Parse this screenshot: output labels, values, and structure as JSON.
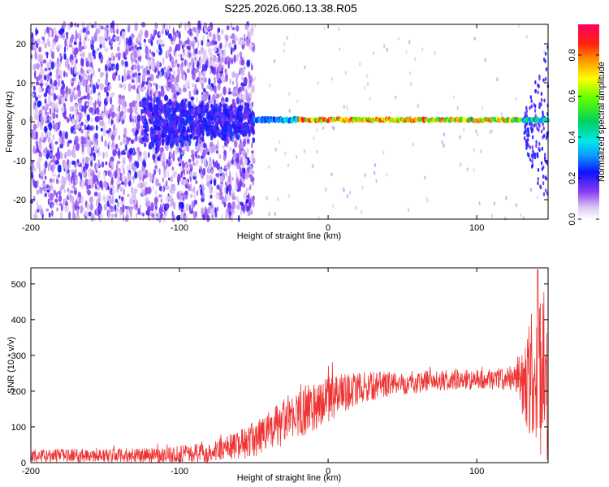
{
  "title": "S225.2026.060.13.38.R05",
  "chart_data": [
    {
      "type": "heatmap",
      "name": "spectrogram",
      "xlabel": "Height of straight line (km)",
      "ylabel": "Frequency (Hz)",
      "xlim": [
        -200,
        148
      ],
      "ylim": [
        -25,
        25
      ],
      "xticks": [
        -200,
        -100,
        0,
        100
      ],
      "yticks": [
        -20,
        -10,
        0,
        10,
        20
      ],
      "colorbar": {
        "label": "Normalized spectral amplitude",
        "range": [
          0.0,
          0.95
        ],
        "ticks": [
          0.0,
          0.2,
          0.4,
          0.6,
          0.8
        ]
      },
      "features": {
        "noise_region_x": [
          -200,
          -50
        ],
        "carrier_start_x": -50,
        "carrier_end_x": 148,
        "carrier_freq_hz": 0.5,
        "peak_x_range": [
          -20,
          60
        ]
      }
    },
    {
      "type": "line",
      "name": "snr",
      "xlabel": "Height of straight line (km)",
      "ylabel": "SNR (10 * v/v)",
      "xlim": [
        -200,
        148
      ],
      "ylim": [
        0,
        545
      ],
      "xticks": [
        -200,
        -100,
        0,
        100
      ],
      "yticks": [
        0,
        100,
        200,
        300,
        400,
        500
      ],
      "color": "#ee3333",
      "envelope": [
        {
          "x": -200,
          "mean": 20,
          "spread": 18
        },
        {
          "x": -120,
          "mean": 20,
          "spread": 20
        },
        {
          "x": -80,
          "mean": 28,
          "spread": 28
        },
        {
          "x": -55,
          "mean": 55,
          "spread": 45
        },
        {
          "x": -40,
          "mean": 85,
          "spread": 60
        },
        {
          "x": -25,
          "mean": 125,
          "spread": 70
        },
        {
          "x": -10,
          "mean": 160,
          "spread": 70
        },
        {
          "x": 5,
          "mean": 185,
          "spread": 60
        },
        {
          "x": 20,
          "mean": 208,
          "spread": 45
        },
        {
          "x": 40,
          "mean": 220,
          "spread": 35
        },
        {
          "x": 70,
          "mean": 228,
          "spread": 30
        },
        {
          "x": 100,
          "mean": 232,
          "spread": 28
        },
        {
          "x": 125,
          "mean": 235,
          "spread": 32
        },
        {
          "x": 132,
          "mean": 240,
          "spread": 120
        },
        {
          "x": 140,
          "mean": 240,
          "spread": 230
        },
        {
          "x": 148,
          "mean": 240,
          "spread": 260
        }
      ],
      "peak": {
        "x": 141,
        "y": 540
      }
    }
  ]
}
